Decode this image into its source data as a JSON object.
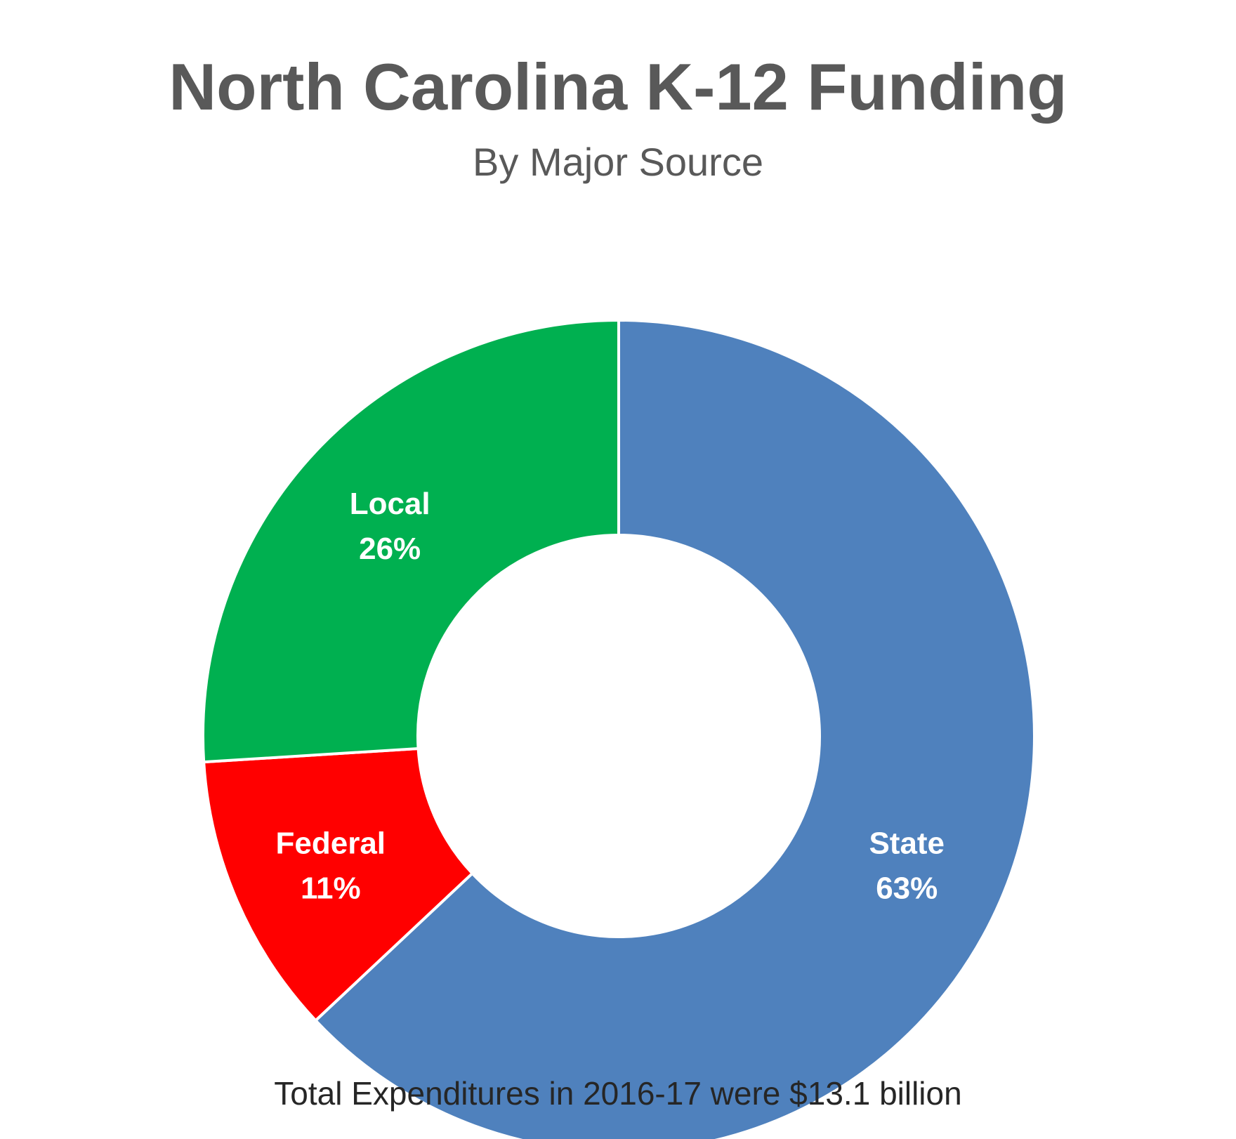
{
  "chart_data": {
    "type": "pie",
    "title": "North Carolina K-12 Funding",
    "subtitle": "By Major Source",
    "footnote": "Total Expenditures in 2016-17 were $13.1 billion",
    "donut": true,
    "slices": [
      {
        "name": "State",
        "value": 63,
        "label": "63%",
        "color": "#4F81BD"
      },
      {
        "name": "Federal",
        "value": 11,
        "label": "11%",
        "color": "#FF0000"
      },
      {
        "name": "Local",
        "value": 26,
        "label": "26%",
        "color": "#00B050"
      }
    ],
    "start_at": "top, clockwise",
    "legend": "none"
  }
}
